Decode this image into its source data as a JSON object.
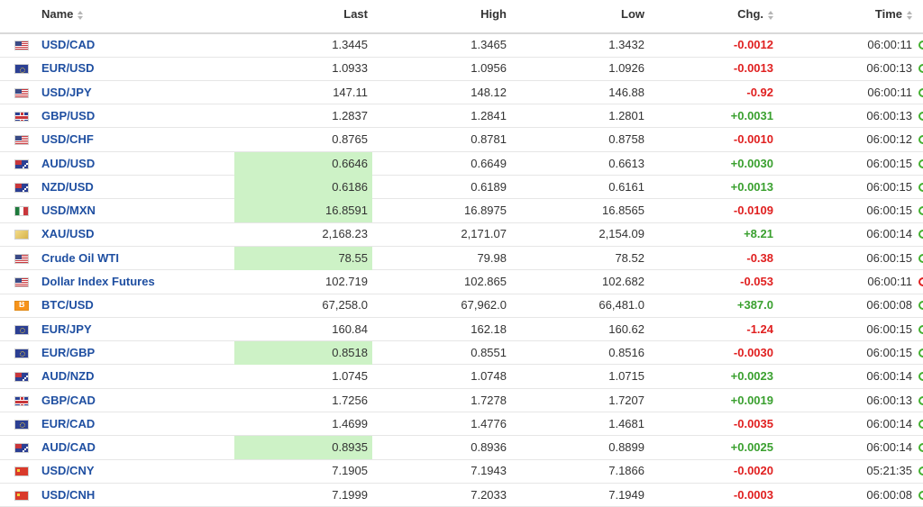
{
  "columns": {
    "name": "Name",
    "last": "Last",
    "high": "High",
    "low": "Low",
    "chg": "Chg.",
    "time": "Time"
  },
  "colors": {
    "positive": "#3aa02f",
    "negative": "#e02020",
    "highlight": "#cdf2c6",
    "link": "#1f4fa1"
  },
  "rows": [
    {
      "flag": "us",
      "name": "USD/CAD",
      "last": "1.3445",
      "high": "1.3465",
      "low": "1.3432",
      "chg": "-0.0012",
      "dir": "neg",
      "time": "06:00:11",
      "hl": false
    },
    {
      "flag": "eu",
      "name": "EUR/USD",
      "last": "1.0933",
      "high": "1.0956",
      "low": "1.0926",
      "chg": "-0.0013",
      "dir": "neg",
      "time": "06:00:13",
      "hl": false
    },
    {
      "flag": "us",
      "name": "USD/JPY",
      "last": "147.11",
      "high": "148.12",
      "low": "146.88",
      "chg": "-0.92",
      "dir": "neg",
      "time": "06:00:11",
      "hl": false
    },
    {
      "flag": "gb",
      "name": "GBP/USD",
      "last": "1.2837",
      "high": "1.2841",
      "low": "1.2801",
      "chg": "+0.0031",
      "dir": "pos",
      "time": "06:00:13",
      "hl": false
    },
    {
      "flag": "us",
      "name": "USD/CHF",
      "last": "0.8765",
      "high": "0.8781",
      "low": "0.8758",
      "chg": "-0.0010",
      "dir": "neg",
      "time": "06:00:12",
      "hl": false
    },
    {
      "flag": "au",
      "name": "AUD/USD",
      "last": "0.6646",
      "high": "0.6649",
      "low": "0.6613",
      "chg": "+0.0030",
      "dir": "pos",
      "time": "06:00:15",
      "hl": true
    },
    {
      "flag": "au",
      "name": "NZD/USD",
      "last": "0.6186",
      "high": "0.6189",
      "low": "0.6161",
      "chg": "+0.0013",
      "dir": "pos",
      "time": "06:00:15",
      "hl": true
    },
    {
      "flag": "mx",
      "name": "USD/MXN",
      "last": "16.8591",
      "high": "16.8975",
      "low": "16.8565",
      "chg": "-0.0109",
      "dir": "neg",
      "time": "06:00:15",
      "hl": true
    },
    {
      "flag": "gold",
      "name": "XAU/USD",
      "last": "2,168.23",
      "high": "2,171.07",
      "low": "2,154.09",
      "chg": "+8.21",
      "dir": "pos",
      "time": "06:00:14",
      "hl": false
    },
    {
      "flag": "us",
      "name": "Crude Oil WTI",
      "last": "78.55",
      "high": "79.98",
      "low": "78.52",
      "chg": "-0.38",
      "dir": "neg",
      "time": "06:00:15",
      "hl": true
    },
    {
      "flag": "us",
      "name": "Dollar Index Futures",
      "last": "102.719",
      "high": "102.865",
      "low": "102.682",
      "chg": "-0.053",
      "dir": "neg",
      "time": "06:00:11",
      "hl": false,
      "dot": "red"
    },
    {
      "flag": "btc",
      "name": "BTC/USD",
      "last": "67,258.0",
      "high": "67,962.0",
      "low": "66,481.0",
      "chg": "+387.0",
      "dir": "pos",
      "time": "06:00:08",
      "hl": false
    },
    {
      "flag": "eu",
      "name": "EUR/JPY",
      "last": "160.84",
      "high": "162.18",
      "low": "160.62",
      "chg": "-1.24",
      "dir": "neg",
      "time": "06:00:15",
      "hl": false
    },
    {
      "flag": "eu",
      "name": "EUR/GBP",
      "last": "0.8518",
      "high": "0.8551",
      "low": "0.8516",
      "chg": "-0.0030",
      "dir": "neg",
      "time": "06:00:15",
      "hl": true
    },
    {
      "flag": "au",
      "name": "AUD/NZD",
      "last": "1.0745",
      "high": "1.0748",
      "low": "1.0715",
      "chg": "+0.0023",
      "dir": "pos",
      "time": "06:00:14",
      "hl": false
    },
    {
      "flag": "gb",
      "name": "GBP/CAD",
      "last": "1.7256",
      "high": "1.7278",
      "low": "1.7207",
      "chg": "+0.0019",
      "dir": "pos",
      "time": "06:00:13",
      "hl": false
    },
    {
      "flag": "eu",
      "name": "EUR/CAD",
      "last": "1.4699",
      "high": "1.4776",
      "low": "1.4681",
      "chg": "-0.0035",
      "dir": "neg",
      "time": "06:00:14",
      "hl": false
    },
    {
      "flag": "au",
      "name": "AUD/CAD",
      "last": "0.8935",
      "high": "0.8936",
      "low": "0.8899",
      "chg": "+0.0025",
      "dir": "pos",
      "time": "06:00:14",
      "hl": true
    },
    {
      "flag": "cn",
      "name": "USD/CNY",
      "last": "7.1905",
      "high": "7.1943",
      "low": "7.1866",
      "chg": "-0.0020",
      "dir": "neg",
      "time": "05:21:35",
      "hl": false
    },
    {
      "flag": "cn",
      "name": "USD/CNH",
      "last": "7.1999",
      "high": "7.2033",
      "low": "7.1949",
      "chg": "-0.0003",
      "dir": "neg",
      "time": "06:00:08",
      "hl": false
    }
  ]
}
